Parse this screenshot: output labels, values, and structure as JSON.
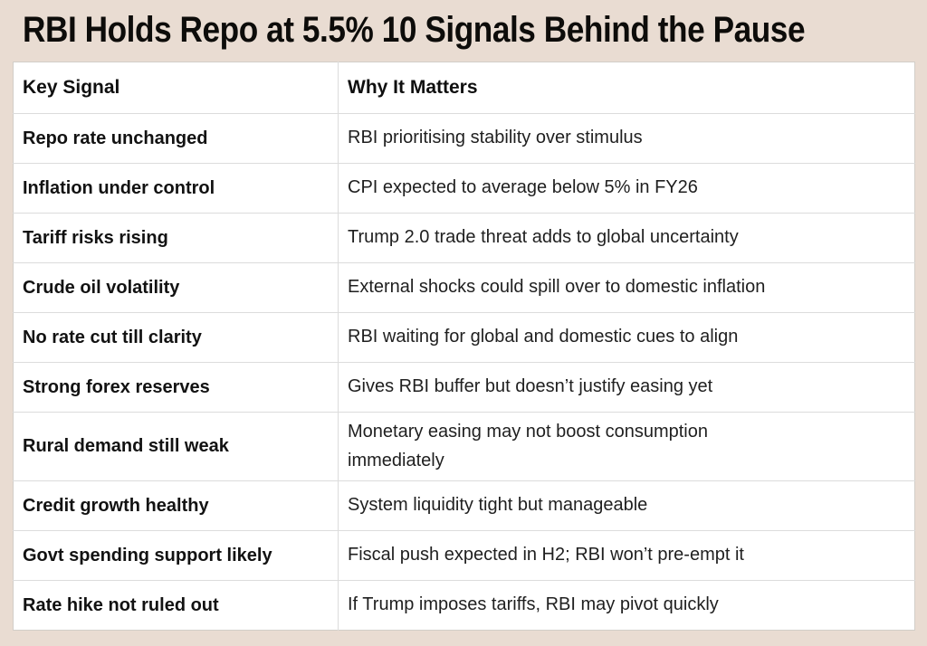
{
  "page": {
    "title": "RBI Holds Repo at 5.5% 10 Signals Behind the Pause",
    "background_color": "#e9dcd2",
    "table_background_color": "#ffffff",
    "divider_color": "#dcdcdc",
    "text_color": "#121212"
  },
  "table": {
    "headers": [
      "Key Signal",
      "Why It Matters"
    ],
    "rows": [
      {
        "signal": "Repo rate unchanged",
        "why": "RBI prioritising stability over stimulus"
      },
      {
        "signal": "Inflation under control",
        "why": "CPI expected to average below 5% in FY26"
      },
      {
        "signal": "Tariff risks rising",
        "why": "Trump 2.0 trade threat adds to global uncertainty"
      },
      {
        "signal": "Crude oil volatility",
        "why": "External shocks could spill over to domestic inflation"
      },
      {
        "signal": "No rate cut till clarity",
        "why": "RBI waiting for global and domestic cues to align"
      },
      {
        "signal": "Strong forex reserves",
        "why": "Gives RBI buffer but doesn’t justify easing yet"
      },
      {
        "signal": "Rural demand still weak",
        "why": "Monetary easing may not boost consumption\nimmediately"
      },
      {
        "signal": "Credit growth healthy",
        "why": "System liquidity tight but manageable"
      },
      {
        "signal": "Govt spending support likely",
        "why": "Fiscal push expected in H2; RBI won’t pre-empt it"
      },
      {
        "signal": "Rate hike not ruled out",
        "why": "If Trump imposes tariffs, RBI may pivot quickly"
      }
    ]
  }
}
